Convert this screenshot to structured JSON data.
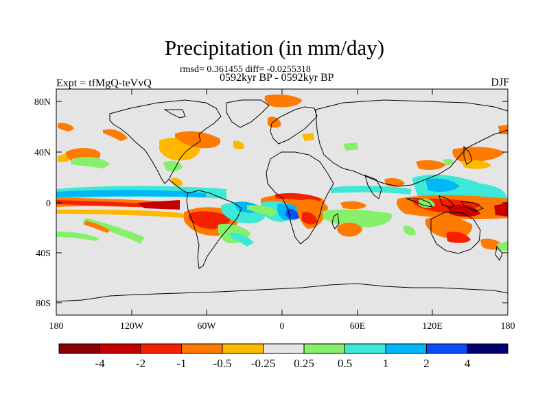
{
  "title": "Precipitation (in mm/day)",
  "stats": "rmsd= 0.361455 diff= -0.0255318",
  "period": "0592kyr BP - 0592kyr BP",
  "experiment": "Expt = tfMgQ-teVvQ",
  "season": "DJF",
  "lat_ticks": [
    "80N",
    "40N",
    "0",
    "40S",
    "80S"
  ],
  "lon_ticks": [
    "180",
    "120W",
    "60W",
    "0",
    "60E",
    "120E",
    "180"
  ],
  "colorbar": {
    "labels": [
      "-4",
      "-2",
      "-1",
      "-0.5",
      "-0.25",
      "0.25",
      "0.5",
      "1",
      "2",
      "4"
    ],
    "colors": [
      "#8b0000",
      "#c60000",
      "#f52000",
      "#ff7a00",
      "#ffb800",
      "#e5e5e5",
      "#86f06a",
      "#3ce8d8",
      "#00b8f8",
      "#0a4cf5",
      "#000070"
    ]
  },
  "colors": {
    "ocean_bg": "#e5e5e5",
    "coast": "#000000"
  }
}
